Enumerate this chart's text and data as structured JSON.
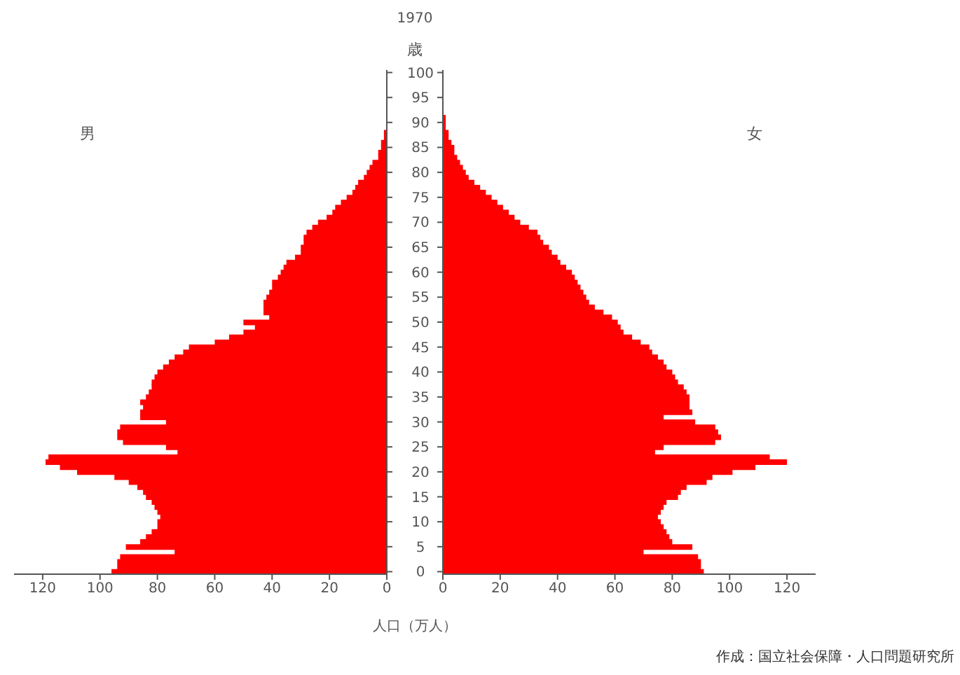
{
  "chart_data": [
    {
      "type": "bar",
      "orientation": "horizontal",
      "tick_labels": "x",
      "categories": [
        "100",
        null,
        null,
        null,
        null,
        "95",
        null,
        null,
        null,
        null,
        "90",
        null,
        null,
        null,
        null,
        "85",
        null,
        null,
        null,
        null,
        "80",
        null,
        null,
        null,
        null,
        "75",
        null,
        null,
        null,
        null,
        "70",
        null,
        null,
        null,
        null,
        "65",
        null,
        null,
        null,
        null,
        "60",
        null,
        null,
        null,
        null,
        "55",
        null,
        null,
        null,
        null,
        "50",
        null,
        null,
        null,
        null,
        "45",
        null,
        null,
        null,
        null,
        "40",
        null,
        null,
        null,
        null,
        "35",
        null,
        null,
        null,
        null,
        "30",
        null,
        null,
        null,
        null,
        "25",
        null,
        null,
        null,
        null,
        "20",
        null,
        null,
        null,
        null,
        "15",
        null,
        null,
        null,
        null,
        "10",
        null,
        null,
        null,
        null,
        "5",
        null,
        null,
        null,
        null,
        "0"
      ],
      "series": [
        {
          "name": "男",
          "color": "#ff0000",
          "values": [
            0,
            0,
            0,
            0,
            0,
            0,
            0,
            0,
            0,
            0,
            0,
            0,
            1,
            1,
            2,
            2,
            3,
            3,
            5,
            6,
            7,
            8,
            10,
            11,
            12,
            14,
            16,
            18,
            19,
            21,
            24,
            26,
            28,
            29,
            29,
            30,
            30,
            32,
            35,
            36,
            37,
            38,
            40,
            40,
            41,
            42,
            43,
            43,
            43,
            41,
            50,
            46,
            50,
            55,
            60,
            69,
            71,
            74,
            76,
            78,
            80,
            81,
            82,
            82,
            83,
            84,
            86,
            85,
            86,
            86,
            77,
            93,
            94,
            94,
            92,
            77,
            73,
            118,
            119,
            114,
            108,
            95,
            90,
            87,
            85,
            84,
            82,
            81,
            80,
            79,
            80,
            80,
            82,
            84,
            86,
            91,
            74,
            93,
            94,
            94,
            96
          ]
        }
      ],
      "xlim": [
        130,
        0
      ],
      "xticks": [
        120,
        100,
        80,
        60,
        40,
        20,
        0
      ]
    },
    {
      "type": "bar",
      "orientation": "horizontal",
      "title": "1970",
      "ylabel": "歳",
      "xlabel": "人口（万人）",
      "annotations": [
        "作成：国立社会保障・人口問題研究所"
      ],
      "categories": [
        "100",
        null,
        null,
        null,
        null,
        "95",
        null,
        null,
        null,
        null,
        "90",
        null,
        null,
        null,
        null,
        "85",
        null,
        null,
        null,
        null,
        "80",
        null,
        null,
        null,
        null,
        "75",
        null,
        null,
        null,
        null,
        "70",
        null,
        null,
        null,
        null,
        "65",
        null,
        null,
        null,
        null,
        "60",
        null,
        null,
        null,
        null,
        "55",
        null,
        null,
        null,
        null,
        "50",
        null,
        null,
        null,
        null,
        "45",
        null,
        null,
        null,
        null,
        "40",
        null,
        null,
        null,
        null,
        "35",
        null,
        null,
        null,
        null,
        "30",
        null,
        null,
        null,
        null,
        "25",
        null,
        null,
        null,
        null,
        "20",
        null,
        null,
        null,
        null,
        "15",
        null,
        null,
        null,
        null,
        "10",
        null,
        null,
        null,
        null,
        "5",
        null,
        null,
        null,
        null,
        "0"
      ],
      "series": [
        {
          "name": "女",
          "color": "#ff0000",
          "values": [
            0,
            0,
            0,
            0,
            0,
            0,
            0,
            0,
            0,
            1,
            1,
            1,
            2,
            2,
            3,
            4,
            4,
            5,
            6,
            7,
            8,
            9,
            11,
            13,
            15,
            17,
            19,
            21,
            23,
            25,
            27,
            30,
            33,
            34,
            35,
            37,
            38,
            40,
            41,
            43,
            45,
            46,
            47,
            48,
            49,
            50,
            51,
            53,
            56,
            59,
            61,
            62,
            63,
            66,
            69,
            72,
            73,
            75,
            77,
            78,
            80,
            81,
            82,
            84,
            85,
            86,
            86,
            86,
            87,
            77,
            88,
            95,
            96,
            97,
            95,
            77,
            74,
            114,
            120,
            109,
            101,
            94,
            92,
            85,
            83,
            82,
            78,
            77,
            76,
            75,
            76,
            77,
            78,
            79,
            80,
            87,
            70,
            89,
            90,
            90,
            91
          ]
        }
      ],
      "xlim": [
        0,
        130
      ],
      "xticks": [
        0,
        20,
        40,
        60,
        80,
        100,
        120
      ]
    }
  ]
}
